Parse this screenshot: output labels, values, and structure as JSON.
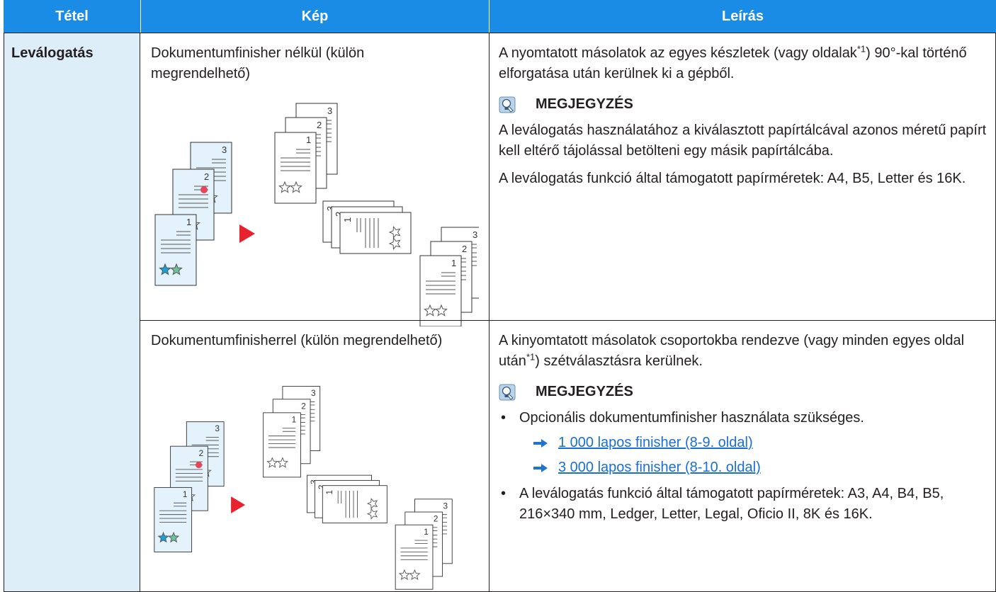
{
  "header": {
    "columns": [
      "Tétel",
      "Kép",
      "Leírás"
    ]
  },
  "table": {
    "item": "Leválogatás",
    "rows": [
      {
        "image_caption": "Dokumentumfinisher nélkül (külön megrendelhető)",
        "illustration": {
          "page_numbers": [
            "1",
            "2",
            "3"
          ]
        },
        "description": {
          "text": "A nyomtatott másolatok az egyes készletek (vagy oldalak",
          "footnote": "*1",
          "text_end": ") 90°-kal történő elforgatása után kerülnek ki a gépből."
        },
        "note": {
          "title": "MEGJEGYZÉS",
          "paragraphs": [
            "A leválogatás használatához a kiválasztott papírtálcával azonos méretű papírt kell eltérő tájolással betölteni egy másik papírtálcába.",
            "A leválogatás funkció által támogatott papírméretek: A4, B5, Letter és 16K."
          ]
        }
      },
      {
        "image_caption": "Dokumentumfinisherrel (külön megrendelhető)",
        "illustration": {
          "page_numbers": [
            "1",
            "2",
            "3"
          ]
        },
        "description": {
          "text": "A kinyomtatott másolatok csoportokba rendezve (vagy minden egyes oldal után",
          "footnote": "*1",
          "text_end": ") szétválasztásra kerülnek."
        },
        "note": {
          "title": "MEGJEGYZÉS",
          "bullets": [
            {
              "text": "Opcionális dokumentumfinisher használata szükséges.",
              "links": [
                "1 000 lapos finisher (8-9. oldal)",
                "3 000 lapos finisher (8-10. oldal)"
              ]
            },
            {
              "text": "A leválogatás funkció által támogatott papírméretek: A3, A4, B4, B5, 216×340  mm, Ledger, Letter, Legal, Oficio  II, 8K és 16K."
            }
          ]
        }
      }
    ]
  }
}
